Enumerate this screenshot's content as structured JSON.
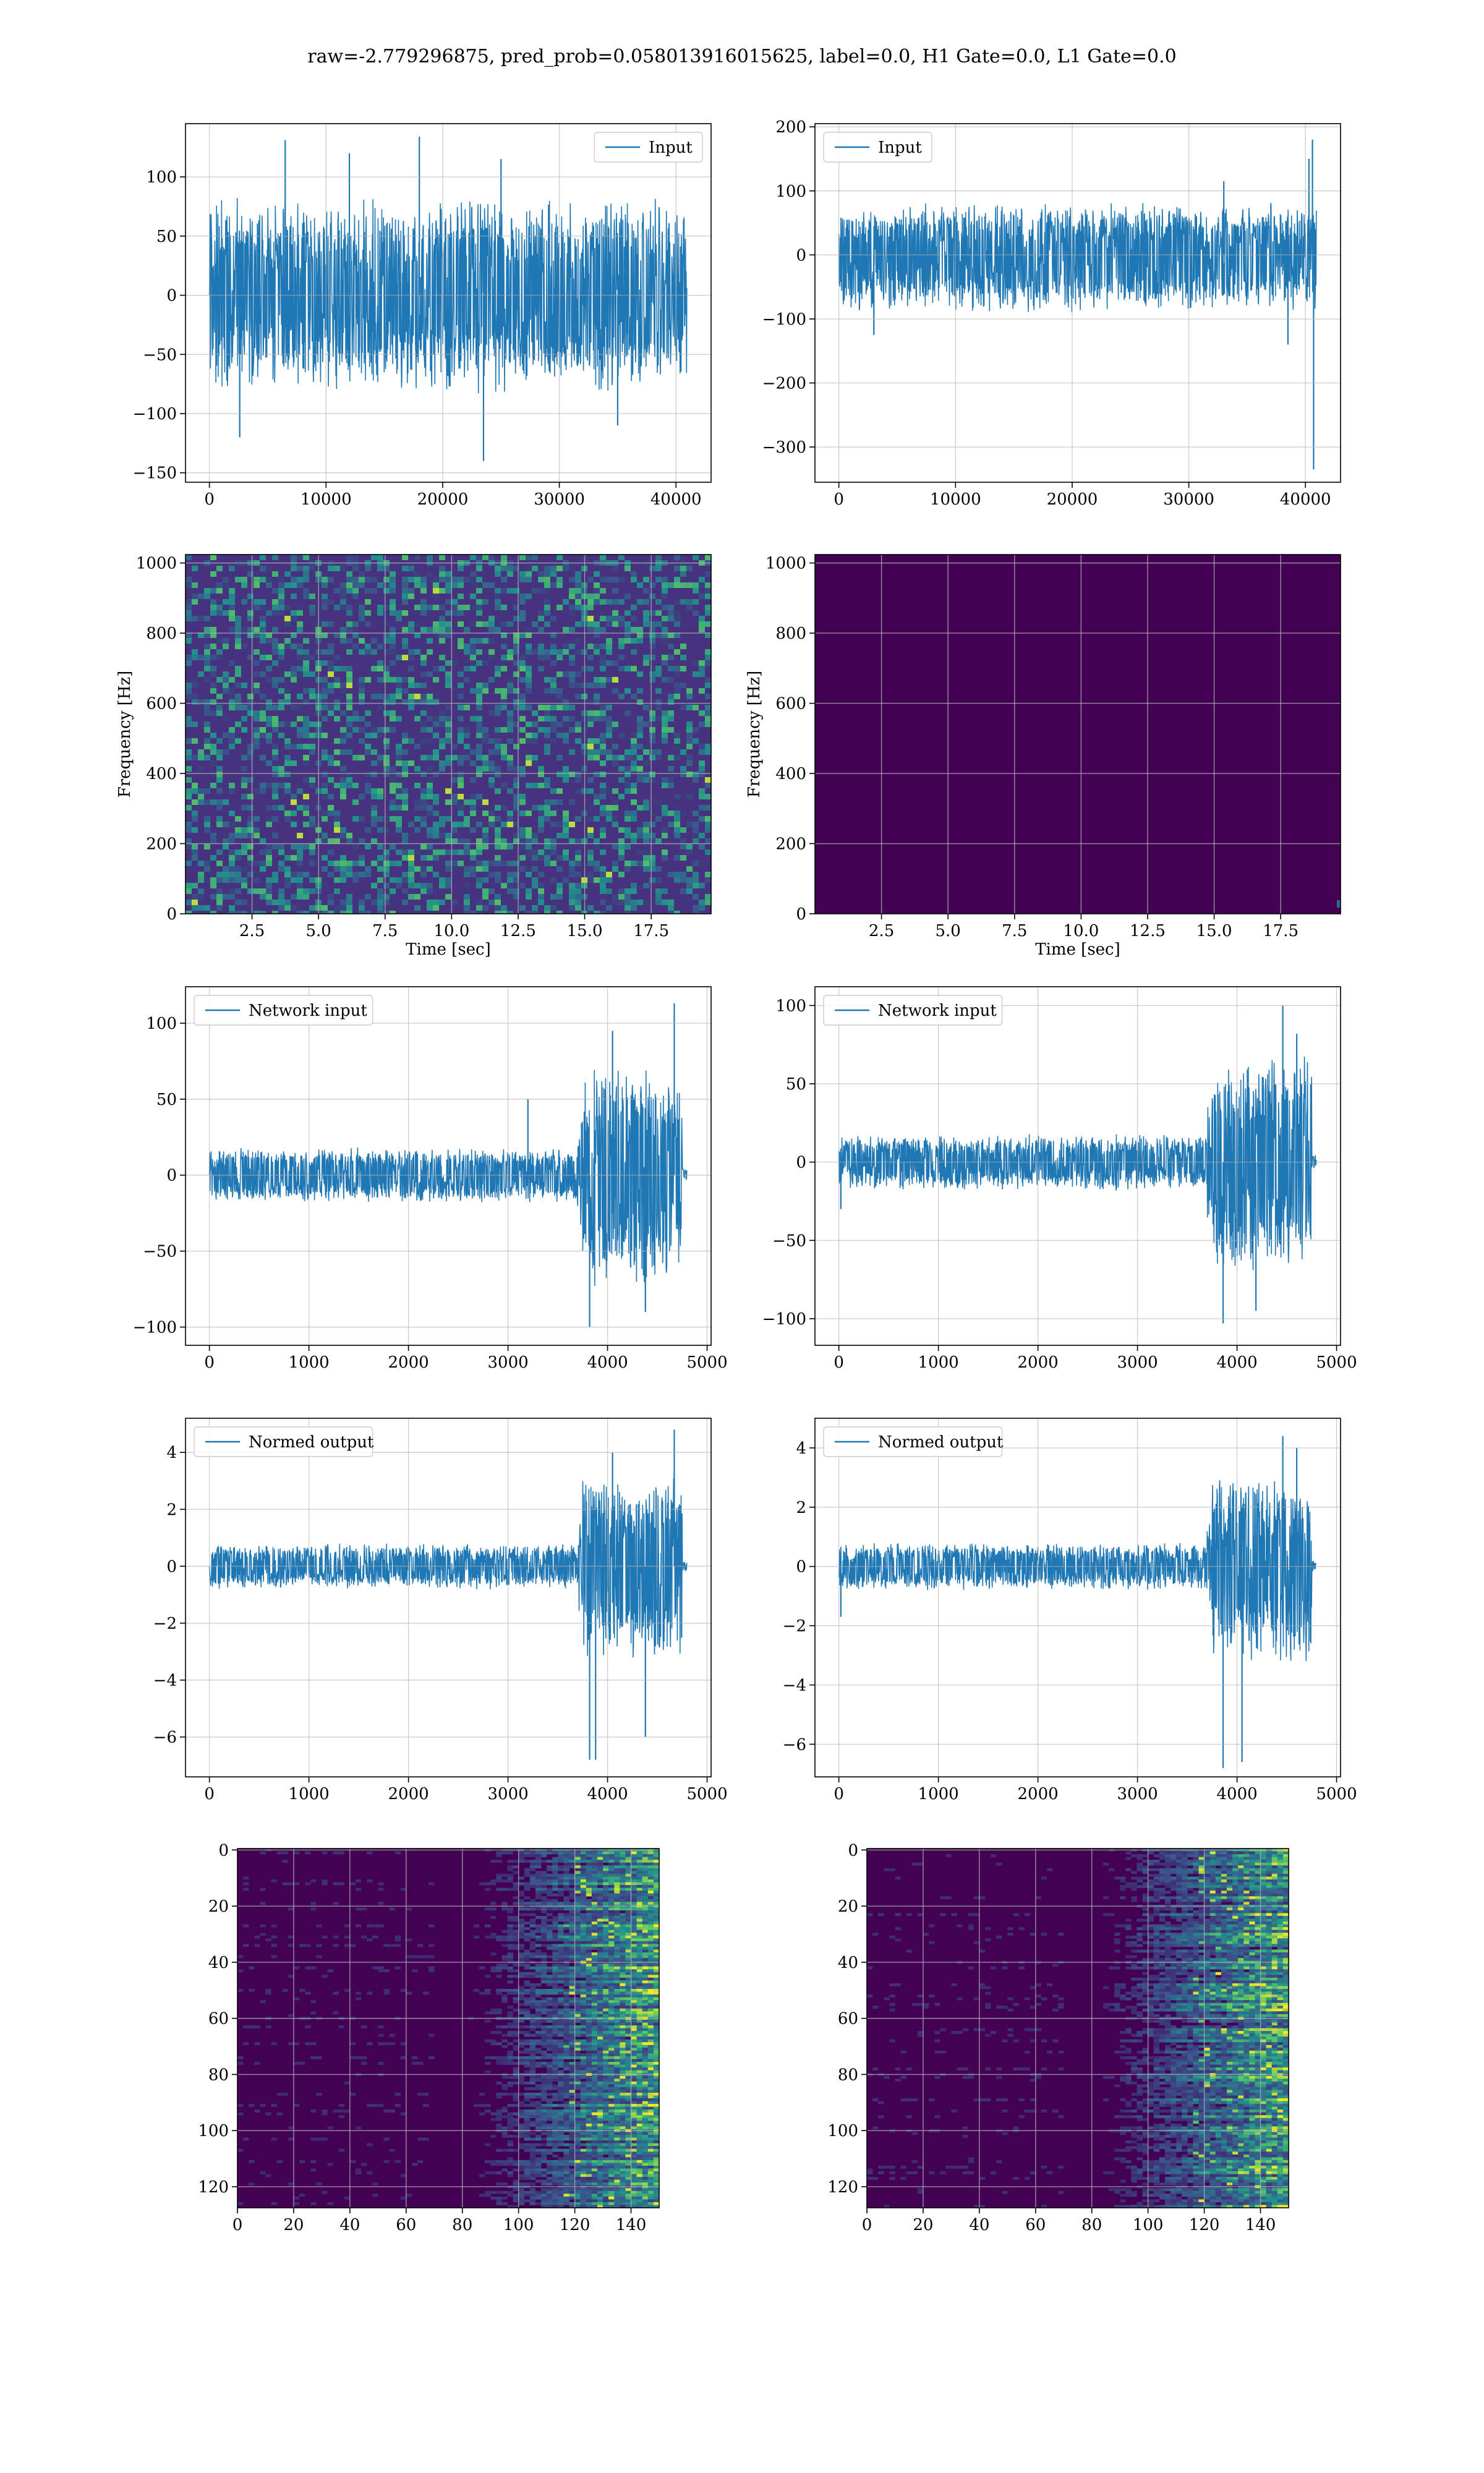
{
  "figure": {
    "suptitle": "raw=-2.779296875, pred_prob=0.058013916015625, label=0.0, H1 Gate=0.0, L1 Gate=0.0",
    "colors": {
      "line": "#1f77b4",
      "grid": "#b0b0b0",
      "viridis_low": "#440154",
      "viridis_mid": "#21918c",
      "viridis_high": "#fde725"
    }
  },
  "chart_data": [
    {
      "panel": "input-h1",
      "type": "line",
      "legend": "Input",
      "legend_loc": "upper right",
      "xlim": [
        -2048,
        43008
      ],
      "ylim": [
        -158,
        145
      ],
      "xticks": [
        0,
        10000,
        20000,
        30000,
        40000
      ],
      "xtick_labels": [
        "0",
        "10000",
        "20000",
        "30000",
        "40000"
      ],
      "yticks": [
        -150,
        -100,
        -50,
        0,
        50,
        100
      ],
      "ytick_labels": [
        "−150",
        "−100",
        "−50",
        "0",
        "50",
        "100"
      ],
      "x_range": [
        0,
        40960
      ],
      "envelope_segments": [
        [
          0,
          40960,
          82,
          -84
        ]
      ],
      "spikes": [
        [
          6500,
          131
        ],
        [
          18000,
          134
        ],
        [
          23500,
          -140
        ],
        [
          25000,
          115
        ],
        [
          2600,
          -120
        ],
        [
          35000,
          -110
        ],
        [
          12000,
          120
        ]
      ],
      "xlabel": "",
      "ylabel": "",
      "grid": true
    },
    {
      "panel": "input-l1",
      "type": "line",
      "legend": "Input",
      "legend_loc": "upper left",
      "xlim": [
        -2048,
        43008
      ],
      "ylim": [
        -355,
        205
      ],
      "xticks": [
        0,
        10000,
        20000,
        30000,
        40000
      ],
      "xtick_labels": [
        "0",
        "10000",
        "20000",
        "30000",
        "40000"
      ],
      "yticks": [
        -300,
        -200,
        -100,
        0,
        100,
        200
      ],
      "ytick_labels": [
        "−300",
        "−200",
        "−100",
        "0",
        "100",
        "200"
      ],
      "x_range": [
        0,
        40960
      ],
      "envelope_segments": [
        [
          0,
          40960,
          82,
          -90
        ]
      ],
      "spikes": [
        [
          40600,
          180
        ],
        [
          40700,
          -335
        ],
        [
          40300,
          150
        ],
        [
          38500,
          -140
        ],
        [
          3000,
          -125
        ],
        [
          33000,
          115
        ]
      ],
      "xlabel": "",
      "ylabel": "",
      "grid": true
    },
    {
      "panel": "spectrogram-h1",
      "type": "heatmap",
      "colormap": "viridis",
      "style": "noise",
      "xlim": [
        0,
        19.75
      ],
      "ylim": [
        0,
        1024
      ],
      "xticks": [
        2.5,
        5.0,
        7.5,
        10.0,
        12.5,
        15.0,
        17.5
      ],
      "xtick_labels": [
        "2.5",
        "5.0",
        "7.5",
        "10.0",
        "12.5",
        "15.0",
        "17.5"
      ],
      "yticks": [
        0,
        200,
        400,
        600,
        800,
        1000
      ],
      "ytick_labels": [
        "0",
        "200",
        "400",
        "600",
        "800",
        "1000"
      ],
      "xlabel": "Time [sec]",
      "ylabel": "Frequency [Hz]",
      "grid": true
    },
    {
      "panel": "spectrogram-l1",
      "type": "heatmap",
      "colormap": "viridis",
      "style": "flat",
      "xlim": [
        0,
        19.75
      ],
      "ylim": [
        0,
        1024
      ],
      "xticks": [
        2.5,
        5.0,
        7.5,
        10.0,
        12.5,
        15.0,
        17.5
      ],
      "xtick_labels": [
        "2.5",
        "5.0",
        "7.5",
        "10.0",
        "12.5",
        "15.0",
        "17.5"
      ],
      "yticks": [
        0,
        200,
        400,
        600,
        800,
        1000
      ],
      "ytick_labels": [
        "0",
        "200",
        "400",
        "600",
        "800",
        "1000"
      ],
      "xlabel": "Time [sec]",
      "ylabel": "Frequency [Hz]",
      "grid": true
    },
    {
      "panel": "network-input-h1",
      "type": "line",
      "legend": "Network input",
      "legend_loc": "upper left",
      "xlim": [
        -240,
        5040
      ],
      "ylim": [
        -112,
        124
      ],
      "xticks": [
        0,
        1000,
        2000,
        3000,
        4000,
        5000
      ],
      "xtick_labels": [
        "0",
        "1000",
        "2000",
        "3000",
        "4000",
        "5000"
      ],
      "yticks": [
        -100,
        -50,
        0,
        50,
        100
      ],
      "ytick_labels": [
        "−100",
        "−50",
        "0",
        "50",
        "100"
      ],
      "x_range": [
        0,
        4800
      ],
      "envelope_segments": [
        [
          0,
          3700,
          18,
          -18
        ],
        [
          3700,
          3750,
          40,
          -40
        ],
        [
          3750,
          4750,
          72,
          -75
        ],
        [
          4750,
          4800,
          5,
          -5
        ]
      ],
      "spikes": [
        [
          4670,
          113
        ],
        [
          3820,
          -100
        ],
        [
          4050,
          95
        ],
        [
          4380,
          -90
        ],
        [
          3200,
          50
        ]
      ],
      "xlabel": "",
      "ylabel": "",
      "grid": true
    },
    {
      "panel": "network-input-l1",
      "type": "line",
      "legend": "Network input",
      "legend_loc": "upper left",
      "xlim": [
        -240,
        5040
      ],
      "ylim": [
        -117,
        112
      ],
      "xticks": [
        0,
        1000,
        2000,
        3000,
        4000,
        5000
      ],
      "xtick_labels": [
        "0",
        "1000",
        "2000",
        "3000",
        "4000",
        "5000"
      ],
      "yticks": [
        -100,
        -50,
        0,
        50,
        100
      ],
      "ytick_labels": [
        "−100",
        "−50",
        "0",
        "50",
        "100"
      ],
      "x_range": [
        0,
        4800
      ],
      "envelope_segments": [
        [
          0,
          3700,
          18,
          -18
        ],
        [
          3700,
          3750,
          40,
          -40
        ],
        [
          3750,
          4750,
          70,
          -75
        ],
        [
          4750,
          4800,
          5,
          -5
        ]
      ],
      "spikes": [
        [
          4460,
          100
        ],
        [
          3860,
          -103
        ],
        [
          4600,
          82
        ],
        [
          4190,
          -95
        ],
        [
          20,
          -30
        ]
      ],
      "xlabel": "",
      "ylabel": "",
      "grid": true
    },
    {
      "panel": "normed-output-h1",
      "type": "line",
      "legend": "Normed output",
      "legend_loc": "upper left",
      "xlim": [
        -240,
        5040
      ],
      "ylim": [
        -7.4,
        5.2
      ],
      "xticks": [
        0,
        1000,
        2000,
        3000,
        4000,
        5000
      ],
      "xtick_labels": [
        "0",
        "1000",
        "2000",
        "3000",
        "4000",
        "5000"
      ],
      "yticks": [
        -6,
        -4,
        -2,
        0,
        2,
        4
      ],
      "ytick_labels": [
        "−6",
        "−4",
        "−2",
        "0",
        "2",
        "4"
      ],
      "x_range": [
        0,
        4800
      ],
      "envelope_segments": [
        [
          0,
          3700,
          0.8,
          -0.8
        ],
        [
          3700,
          3750,
          1.8,
          -1.8
        ],
        [
          3750,
          4750,
          3.2,
          -3.4
        ],
        [
          4750,
          4800,
          0.2,
          -0.2
        ]
      ],
      "spikes": [
        [
          4670,
          4.8
        ],
        [
          3820,
          -6.8
        ],
        [
          3880,
          -6.8
        ],
        [
          4380,
          -6.0
        ],
        [
          4050,
          4.0
        ]
      ],
      "xlabel": "",
      "ylabel": "",
      "grid": true
    },
    {
      "panel": "normed-output-l1",
      "type": "line",
      "legend": "Normed output",
      "legend_loc": "upper left",
      "xlim": [
        -240,
        5040
      ],
      "ylim": [
        -7.1,
        5.0
      ],
      "xticks": [
        0,
        1000,
        2000,
        3000,
        4000,
        5000
      ],
      "xtick_labels": [
        "0",
        "1000",
        "2000",
        "3000",
        "4000",
        "5000"
      ],
      "yticks": [
        -6,
        -4,
        -2,
        0,
        2,
        4
      ],
      "ytick_labels": [
        "−6",
        "−4",
        "−2",
        "0",
        "2",
        "4"
      ],
      "x_range": [
        0,
        4800
      ],
      "envelope_segments": [
        [
          0,
          3700,
          0.8,
          -0.8
        ],
        [
          3700,
          3750,
          1.8,
          -1.8
        ],
        [
          3750,
          4750,
          3.2,
          -3.3
        ],
        [
          4750,
          4800,
          0.2,
          -0.2
        ]
      ],
      "spikes": [
        [
          4460,
          4.4
        ],
        [
          3860,
          -6.8
        ],
        [
          4050,
          -6.6
        ],
        [
          4600,
          4.0
        ],
        [
          20,
          -1.7
        ]
      ],
      "xlabel": "",
      "ylabel": "",
      "grid": true
    },
    {
      "panel": "embedding-h1",
      "type": "heatmap",
      "colormap": "viridis",
      "style": "chirp",
      "origin": "upper",
      "xlim": [
        0,
        150
      ],
      "ylim": [
        127.5,
        -0.5
      ],
      "xticks": [
        0,
        20,
        40,
        60,
        80,
        100,
        120,
        140
      ],
      "xtick_labels": [
        "0",
        "20",
        "40",
        "60",
        "80",
        "100",
        "120",
        "140"
      ],
      "yticks": [
        0,
        20,
        40,
        60,
        80,
        100,
        120
      ],
      "ytick_labels": [
        "0",
        "20",
        "40",
        "60",
        "80",
        "100",
        "120"
      ],
      "xlabel": "",
      "ylabel": "",
      "grid": true
    },
    {
      "panel": "embedding-l1",
      "type": "heatmap",
      "colormap": "viridis",
      "style": "chirp",
      "origin": "upper",
      "xlim": [
        0,
        150
      ],
      "ylim": [
        127.5,
        -0.5
      ],
      "xticks": [
        0,
        20,
        40,
        60,
        80,
        100,
        120,
        140
      ],
      "xtick_labels": [
        "0",
        "20",
        "40",
        "60",
        "80",
        "100",
        "120",
        "140"
      ],
      "yticks": [
        0,
        20,
        40,
        60,
        80,
        100,
        120
      ],
      "ytick_labels": [
        "0",
        "20",
        "40",
        "60",
        "80",
        "100",
        "120"
      ],
      "xlabel": "",
      "ylabel": "",
      "grid": true
    }
  ]
}
